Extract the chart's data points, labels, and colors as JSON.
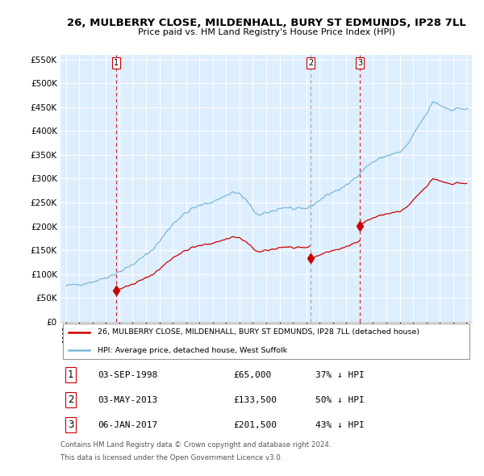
{
  "title1": "26, MULBERRY CLOSE, MILDENHALL, BURY ST EDMUNDS, IP28 7LL",
  "title2": "Price paid vs. HM Land Registry's House Price Index (HPI)",
  "sale_dates": [
    "03-SEP-1998",
    "03-MAY-2013",
    "06-JAN-2017"
  ],
  "sale_prices": [
    65000,
    133500,
    201500
  ],
  "sale_pct": [
    "37%",
    "50%",
    "43%"
  ],
  "legend1": "26, MULBERRY CLOSE, MILDENHALL, BURY ST EDMUNDS, IP28 7LL (detached house)",
  "legend2": "HPI: Average price, detached house, West Suffolk",
  "footnote1": "Contains HM Land Registry data © Crown copyright and database right 2024.",
  "footnote2": "This data is licensed under the Open Government Licence v3.0.",
  "hpi_color": "#7ab8d9",
  "price_color": "#cc0000",
  "vline_colors": [
    "#cc0000",
    "#888888",
    "#cc0000"
  ],
  "vline_styles": [
    "--",
    "--",
    "--"
  ],
  "marker_box_color": "#cc0000",
  "chart_bg": "#ddeeff",
  "background_color": "#ffffff",
  "ylim": [
    0,
    560000
  ],
  "yticks": [
    0,
    50000,
    100000,
    150000,
    200000,
    250000,
    300000,
    350000,
    400000,
    450000,
    500000,
    550000
  ],
  "sale_year_floats": [
    1998.75,
    2013.33,
    2017.0
  ],
  "prices_fmt": [
    "£65,000",
    "£133,500",
    "£201,500"
  ]
}
